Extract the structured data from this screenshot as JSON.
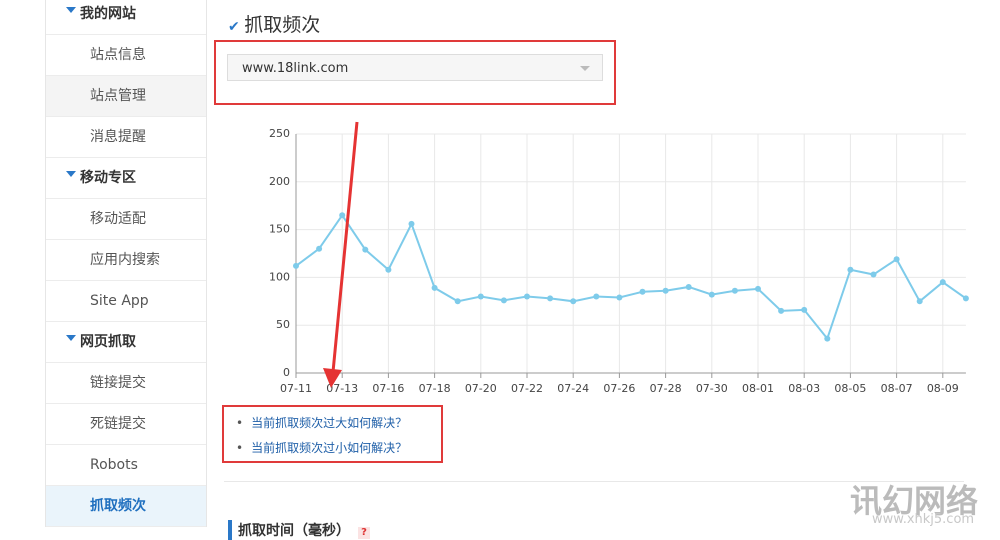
{
  "sidebar": [
    "我的网站",
    "站点信息",
    "站点管理",
    "消息提醒",
    "移动专区",
    "移动适配",
    "应用内搜索",
    "Site App",
    "网页抓取",
    "链接提交",
    "死链提交",
    "Robots",
    "抓取频次"
  ],
  "header": {
    "title": "抓取频次"
  },
  "dropdown": "www.18link.com",
  "chart_data": {
    "type": "line",
    "categories": [
      "07-11",
      null,
      "07-13",
      null,
      "07-16",
      null,
      "07-18",
      null,
      "07-20",
      null,
      "07-22",
      null,
      "07-24",
      null,
      "07-26",
      null,
      "07-28",
      null,
      "07-30",
      null,
      "08-01",
      null,
      "08-03",
      null,
      "08-05",
      null,
      "08-07",
      null,
      "08-09",
      null
    ],
    "values": [
      112,
      130,
      165,
      129,
      108,
      156,
      89,
      75,
      80,
      76,
      80,
      78,
      75,
      80,
      79,
      85,
      86,
      90,
      82,
      86,
      88,
      65,
      66,
      36,
      108,
      103,
      119,
      75,
      95,
      78
    ],
    "color": "#7ecbea",
    "ylim": [
      0,
      250
    ],
    "yticks": [
      0,
      50,
      100,
      150,
      200,
      250
    ],
    "grid": true
  },
  "links": [
    "当前抓取频次过大如何解决？",
    "当前抓取频次过小如何解决？"
  ],
  "section": {
    "title": "抓取时间（毫秒）",
    "help": "?"
  },
  "watermark": [
    "讯幻网络",
    "www.xhkj5.com"
  ]
}
